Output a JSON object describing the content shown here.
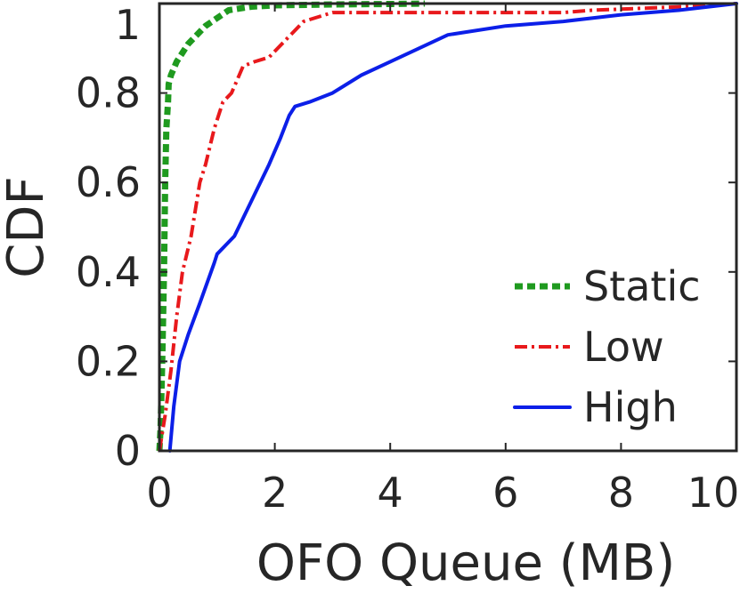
{
  "chart_data": {
    "type": "line",
    "title": "",
    "xlabel": "OFO Queue (MB)",
    "ylabel": "CDF",
    "xlim": [
      0,
      10
    ],
    "ylim": [
      0,
      1
    ],
    "xticks": [
      0,
      2,
      4,
      6,
      8,
      10
    ],
    "yticks": [
      0,
      0.2,
      0.4,
      0.6,
      0.8,
      1
    ],
    "xtick_labels": [
      "0",
      "2",
      "4",
      "6",
      "8",
      "10"
    ],
    "ytick_labels": [
      "0",
      "0.2",
      "0.4",
      "0.6",
      "0.8",
      "1"
    ],
    "grid": false,
    "legend_position": "bottom-right",
    "series": [
      {
        "name": "Static",
        "color": "#1f9a1f",
        "style": "dotted",
        "x": [
          0.0,
          0.02,
          0.05,
          0.08,
          0.1,
          0.12,
          0.15,
          0.16,
          0.2,
          0.3,
          0.5,
          0.8,
          1.2,
          1.6,
          2.0,
          3.0,
          4.0,
          4.6
        ],
        "y": [
          0.0,
          0.05,
          0.2,
          0.4,
          0.6,
          0.72,
          0.78,
          0.82,
          0.84,
          0.87,
          0.91,
          0.95,
          0.985,
          0.993,
          0.996,
          0.998,
          0.999,
          1.0
        ]
      },
      {
        "name": "Low",
        "color": "#e8191c",
        "style": "dashdot",
        "x": [
          0.0,
          0.1,
          0.2,
          0.3,
          0.4,
          0.55,
          0.7,
          0.8,
          0.95,
          1.1,
          1.25,
          1.45,
          1.65,
          1.9,
          2.2,
          2.5,
          3.0,
          4.0,
          5.0,
          6.0,
          7.0,
          7.5,
          8.5,
          9.5,
          10.0
        ],
        "y": [
          0.0,
          0.08,
          0.18,
          0.3,
          0.4,
          0.48,
          0.6,
          0.64,
          0.72,
          0.78,
          0.8,
          0.86,
          0.87,
          0.88,
          0.92,
          0.96,
          0.98,
          0.98,
          0.98,
          0.98,
          0.98,
          0.985,
          0.99,
          0.995,
          1.0
        ]
      },
      {
        "name": "High",
        "color": "#0c1fe8",
        "style": "solid",
        "x": [
          0.18,
          0.25,
          0.35,
          0.5,
          0.7,
          0.95,
          1.0,
          1.3,
          1.6,
          1.9,
          2.1,
          2.25,
          2.35,
          2.6,
          3.0,
          3.5,
          4.0,
          4.5,
          5.0,
          6.0,
          7.0,
          8.0,
          9.0,
          10.0
        ],
        "y": [
          0.0,
          0.1,
          0.2,
          0.26,
          0.33,
          0.42,
          0.44,
          0.48,
          0.56,
          0.64,
          0.7,
          0.75,
          0.77,
          0.78,
          0.8,
          0.84,
          0.87,
          0.9,
          0.93,
          0.95,
          0.96,
          0.975,
          0.985,
          1.0
        ]
      }
    ]
  }
}
